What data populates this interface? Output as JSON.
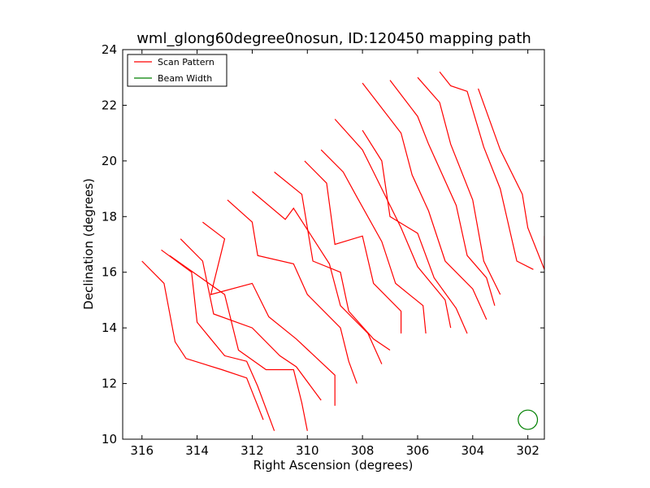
{
  "chart_data": {
    "type": "line",
    "title": "wml_glong60degree0nosun, ID:120450 mapping path",
    "xlabel": "Right Ascension (degrees)",
    "ylabel": "Declination (degrees)",
    "xlim": [
      316.7,
      301.4
    ],
    "ylim": [
      10,
      24
    ],
    "x_reversed": true,
    "xticks": [
      316,
      314,
      312,
      310,
      308,
      306,
      304,
      302
    ],
    "yticks": [
      10,
      12,
      14,
      16,
      18,
      20,
      22,
      24
    ],
    "grid": false,
    "legend": {
      "placement": "top-left",
      "entries": [
        {
          "label": "Scan Pattern",
          "color": "#ff0000"
        },
        {
          "label": "Beam Width",
          "color": "#008000"
        }
      ]
    },
    "series": [
      {
        "color": "#ff0000",
        "segments": [
          [
            [
              316.0,
              16.4
            ],
            [
              315.2,
              15.6
            ],
            [
              314.8,
              13.5
            ],
            [
              314.4,
              12.9
            ],
            [
              313.1,
              12.5
            ],
            [
              312.2,
              12.2
            ],
            [
              311.6,
              10.7
            ]
          ],
          [
            [
              315.3,
              16.8
            ],
            [
              314.2,
              16.0
            ],
            [
              314.0,
              14.2
            ],
            [
              313.0,
              13.0
            ],
            [
              312.2,
              12.8
            ],
            [
              311.8,
              11.9
            ],
            [
              311.2,
              10.3
            ]
          ],
          [
            [
              315.0,
              16.6
            ],
            [
              313.0,
              15.2
            ],
            [
              312.5,
              13.2
            ],
            [
              311.5,
              12.5
            ],
            [
              310.5,
              12.5
            ],
            [
              310.2,
              11.3
            ],
            [
              310.0,
              10.3
            ]
          ],
          [
            [
              314.6,
              17.2
            ],
            [
              313.8,
              16.4
            ],
            [
              313.4,
              14.5
            ],
            [
              312.0,
              14.0
            ],
            [
              311.0,
              13.0
            ],
            [
              310.4,
              12.6
            ],
            [
              309.5,
              11.4
            ]
          ],
          [
            [
              313.8,
              17.8
            ],
            [
              313.0,
              17.2
            ],
            [
              313.5,
              15.2
            ],
            [
              312.0,
              15.6
            ],
            [
              311.4,
              14.4
            ],
            [
              310.4,
              13.6
            ],
            [
              309.0,
              12.3
            ],
            [
              309.0,
              11.2
            ]
          ],
          [
            [
              312.9,
              18.6
            ],
            [
              312.0,
              17.8
            ],
            [
              311.8,
              16.6
            ],
            [
              310.5,
              16.3
            ],
            [
              310.0,
              15.2
            ],
            [
              308.8,
              14.0
            ],
            [
              308.5,
              12.8
            ],
            [
              308.2,
              12.0
            ]
          ],
          [
            [
              312.0,
              18.9
            ],
            [
              310.8,
              17.9
            ],
            [
              310.5,
              18.3
            ],
            [
              309.2,
              16.3
            ],
            [
              308.8,
              14.8
            ],
            [
              307.8,
              13.8
            ],
            [
              307.3,
              12.7
            ]
          ],
          [
            [
              311.2,
              19.6
            ],
            [
              310.2,
              18.8
            ],
            [
              309.8,
              16.4
            ],
            [
              308.8,
              16.0
            ],
            [
              308.5,
              14.6
            ],
            [
              307.6,
              13.6
            ],
            [
              307.0,
              13.2
            ]
          ],
          [
            [
              310.1,
              20.0
            ],
            [
              309.3,
              19.2
            ],
            [
              309.0,
              17.0
            ],
            [
              308.0,
              17.3
            ],
            [
              307.6,
              15.6
            ],
            [
              306.6,
              14.6
            ],
            [
              306.6,
              13.8
            ]
          ],
          [
            [
              309.5,
              20.4
            ],
            [
              308.7,
              19.6
            ],
            [
              308.2,
              18.7
            ],
            [
              307.3,
              17.1
            ],
            [
              306.8,
              15.6
            ],
            [
              305.8,
              14.8
            ],
            [
              305.7,
              13.8
            ]
          ],
          [
            [
              309.0,
              21.5
            ],
            [
              308.0,
              20.4
            ],
            [
              307.6,
              19.6
            ],
            [
              306.6,
              17.6
            ],
            [
              306.0,
              16.2
            ],
            [
              305.0,
              15.0
            ],
            [
              304.8,
              14.0
            ]
          ],
          [
            [
              308.0,
              21.1
            ],
            [
              307.3,
              20.0
            ],
            [
              307.0,
              18.0
            ],
            [
              306.0,
              17.4
            ],
            [
              305.4,
              15.8
            ],
            [
              304.6,
              14.7
            ],
            [
              304.2,
              13.8
            ]
          ],
          [
            [
              308.0,
              22.8
            ],
            [
              306.6,
              21.0
            ],
            [
              306.2,
              19.5
            ],
            [
              305.6,
              18.2
            ],
            [
              305.0,
              16.4
            ],
            [
              304.0,
              15.4
            ],
            [
              303.5,
              14.3
            ]
          ],
          [
            [
              307.0,
              22.9
            ],
            [
              306.0,
              21.6
            ],
            [
              305.6,
              20.6
            ],
            [
              304.6,
              18.4
            ],
            [
              304.2,
              16.6
            ],
            [
              303.5,
              15.8
            ],
            [
              303.2,
              14.8
            ]
          ],
          [
            [
              306.0,
              23.0
            ],
            [
              305.2,
              22.1
            ],
            [
              304.8,
              20.6
            ],
            [
              304.0,
              18.6
            ],
            [
              303.6,
              16.4
            ],
            [
              303.0,
              15.2
            ]
          ],
          [
            [
              305.2,
              23.2
            ],
            [
              304.8,
              22.7
            ],
            [
              304.2,
              22.5
            ],
            [
              303.6,
              20.5
            ],
            [
              303.0,
              19.0
            ],
            [
              302.4,
              16.4
            ],
            [
              301.8,
              16.1
            ]
          ],
          [
            [
              303.8,
              22.6
            ],
            [
              303.0,
              20.4
            ],
            [
              302.2,
              18.8
            ],
            [
              302.0,
              17.6
            ],
            [
              301.4,
              16.1
            ],
            [
              301.4,
              17.3
            ]
          ]
        ]
      }
    ],
    "beam": {
      "ra": 302.0,
      "dec": 10.7,
      "radius": 0.35,
      "color": "#008000"
    }
  }
}
